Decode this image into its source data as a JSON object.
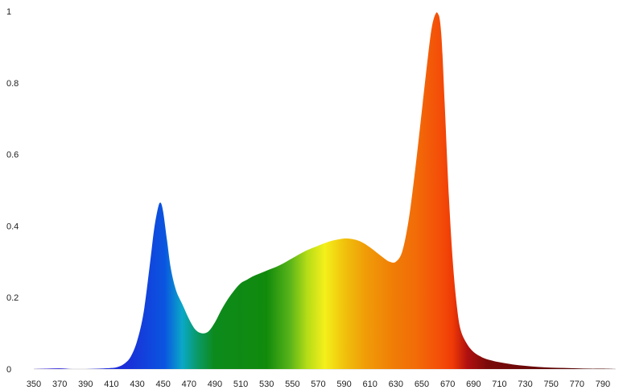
{
  "chart_data": {
    "type": "area",
    "title": "",
    "xlabel": "",
    "ylabel": "",
    "xlim": [
      350,
      800
    ],
    "ylim": [
      0,
      1
    ],
    "grid": false,
    "legend": "none",
    "x_ticks": [
      350,
      370,
      390,
      410,
      430,
      450,
      470,
      490,
      510,
      530,
      550,
      570,
      590,
      610,
      630,
      650,
      670,
      690,
      710,
      730,
      750,
      770,
      790
    ],
    "y_ticks": [
      0,
      0.2,
      0.4,
      0.6,
      0.8,
      1
    ],
    "y_tick_labels": [
      "0",
      "0.2",
      "0.4",
      "0.6",
      "0.8",
      "1"
    ],
    "fill": "wavelength spectrum gradient",
    "series": [
      {
        "x": [
          350,
          360,
          370,
          380,
          390,
          400,
          410,
          415,
          420,
          425,
          430,
          435,
          440,
          443,
          446,
          448,
          450,
          453,
          456,
          460,
          465,
          470,
          475,
          480,
          485,
          490,
          495,
          500,
          505,
          510,
          515,
          520,
          530,
          540,
          550,
          560,
          570,
          575,
          580,
          585,
          590,
          595,
          600,
          605,
          610,
          615,
          620,
          625,
          630,
          635,
          640,
          645,
          650,
          655,
          658,
          661,
          663,
          664,
          665,
          666,
          668,
          671,
          674,
          677,
          680,
          685,
          690,
          695,
          700,
          710,
          720,
          730,
          740,
          750,
          760,
          770,
          780,
          790,
          800
        ],
        "y": [
          0.0,
          0.001,
          0.002,
          0.0,
          0.0,
          0.001,
          0.003,
          0.006,
          0.015,
          0.035,
          0.08,
          0.16,
          0.3,
          0.39,
          0.45,
          0.465,
          0.44,
          0.36,
          0.28,
          0.22,
          0.18,
          0.14,
          0.11,
          0.1,
          0.105,
          0.13,
          0.165,
          0.195,
          0.22,
          0.24,
          0.25,
          0.26,
          0.275,
          0.29,
          0.31,
          0.33,
          0.345,
          0.352,
          0.358,
          0.362,
          0.365,
          0.364,
          0.36,
          0.352,
          0.34,
          0.326,
          0.312,
          0.3,
          0.3,
          0.33,
          0.42,
          0.56,
          0.72,
          0.88,
          0.96,
          0.995,
          0.99,
          0.975,
          0.94,
          0.88,
          0.72,
          0.48,
          0.3,
          0.18,
          0.11,
          0.07,
          0.048,
          0.036,
          0.028,
          0.019,
          0.013,
          0.009,
          0.006,
          0.004,
          0.003,
          0.002,
          0.001,
          0.001,
          0.0
        ]
      }
    ]
  }
}
